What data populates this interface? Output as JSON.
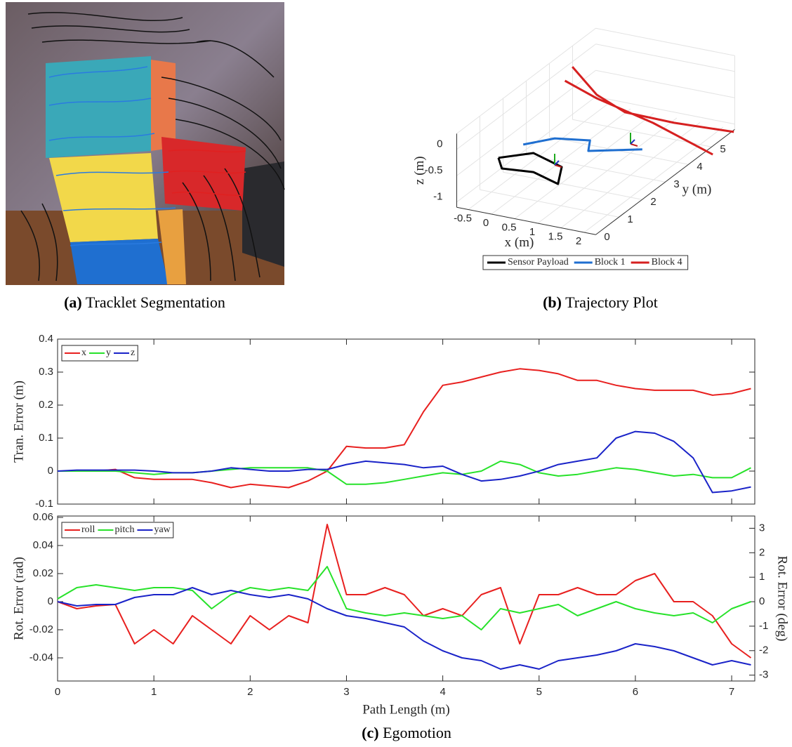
{
  "captions": [
    {
      "label": "(a)",
      "text": "Tracklet Segmentation"
    },
    {
      "label": "(b)",
      "text": "Trajectory Plot"
    },
    {
      "label": "(c)",
      "text": "Egomotion"
    }
  ],
  "chart_data": [
    {
      "type": "line3d",
      "xlabel": "x (m)",
      "ylabel": "y (m)",
      "zlabel": "z (m)",
      "xlim": [
        -0.75,
        2.25
      ],
      "ylim": [
        0,
        6
      ],
      "zlim": [
        -1.1,
        0.3
      ],
      "xticks": [
        -0.5,
        0,
        0.5,
        1,
        1.5,
        2
      ],
      "yticks": [
        0,
        1,
        2,
        3,
        4,
        5
      ],
      "zticks": [
        -1,
        -0.5,
        0
      ],
      "series": [
        {
          "name": "Sensor Payload",
          "color": "#000000",
          "x": [
            -0.32,
            0.17,
            0.97,
            1.29,
            0.6,
            -0.02,
            -0.32
          ],
          "y": [
            0.94,
            1.47,
            1.09,
            0.29,
            0.61,
            0.49,
            0.94
          ],
          "z": [
            -0.4,
            -0.4,
            -0.4,
            -0.4,
            -0.4,
            -0.4,
            -0.4
          ]
        },
        {
          "name": "Block 1",
          "color": "#1f6fd0",
          "x": [
            0.28,
            0.68,
            1.33,
            1.54,
            2.43
          ],
          "y": [
            0.81,
            1.37,
            1.59,
            1.1,
            1.65
          ],
          "z": [
            0,
            0,
            0,
            0,
            0
          ]
        },
        {
          "name": "Block 4",
          "color": "#d62020",
          "x": [
            -0.4,
            0.65,
            1.53,
            2.61,
            3.84,
            null,
            -0.21,
            0.73,
            2.25,
            3.99
          ],
          "y": [
            4.29,
            3.24,
            2.7,
            2.66,
            2.78,
            null,
            3.59,
            3.08,
            2.47,
            1.57
          ],
          "z": [
            0.2,
            0.2,
            0.2,
            0.2,
            0.2,
            null,
            0.2,
            0.2,
            0.2,
            0.2
          ]
        }
      ]
    },
    {
      "type": "line",
      "ylabel": "Tran. Error (m)",
      "x": [
        0,
        0.2,
        0.4,
        0.6,
        0.8,
        1,
        1.2,
        1.4,
        1.6,
        1.8,
        2,
        2.2,
        2.4,
        2.6,
        2.8,
        3,
        3.2,
        3.4,
        3.6,
        3.8,
        4,
        4.2,
        4.4,
        4.6,
        4.8,
        5,
        5.2,
        5.4,
        5.6,
        5.8,
        6,
        6.2,
        6.4,
        6.6,
        6.8,
        7,
        7.2
      ],
      "xlim": [
        0,
        7.24
      ],
      "xticks": [
        0,
        1,
        2,
        3,
        4,
        5,
        6,
        7
      ],
      "ylim": [
        -0.1,
        0.4
      ],
      "yticks": [
        -0.1,
        0,
        0.1,
        0.2,
        0.3,
        0.4
      ],
      "series": [
        {
          "name": "x",
          "color": "#e8201f",
          "values": [
            0,
            0,
            0,
            0.005,
            -0.02,
            -0.025,
            -0.025,
            -0.025,
            -0.035,
            -0.05,
            -0.04,
            -0.045,
            -0.05,
            -0.03,
            0,
            0.075,
            0.07,
            0.07,
            0.08,
            0.18,
            0.26,
            0.27,
            0.285,
            0.3,
            0.31,
            0.305,
            0.295,
            0.275,
            0.275,
            0.26,
            0.25,
            0.245,
            0.245,
            0.245,
            0.23,
            0.235,
            0.25
          ]
        },
        {
          "name": "y",
          "color": "#27e22a",
          "values": [
            0,
            0,
            0,
            0,
            -0.005,
            -0.01,
            -0.005,
            -0.005,
            0,
            0.005,
            0.01,
            0.01,
            0.01,
            0.01,
            0,
            -0.04,
            -0.04,
            -0.035,
            -0.025,
            -0.015,
            -0.005,
            -0.01,
            0,
            0.03,
            0.02,
            -0.005,
            -0.015,
            -0.01,
            0,
            0.01,
            0.005,
            -0.005,
            -0.015,
            -0.01,
            -0.02,
            -0.02,
            0.01
          ]
        },
        {
          "name": "z",
          "color": "#1a23c8",
          "values": [
            0,
            0.003,
            0.003,
            0.003,
            0.003,
            0,
            -0.005,
            -0.005,
            0,
            0.01,
            0.005,
            0,
            0,
            0.005,
            0.005,
            0.02,
            0.03,
            0.025,
            0.02,
            0.01,
            0.015,
            -0.01,
            -0.03,
            -0.025,
            -0.015,
            0,
            0.02,
            0.03,
            0.04,
            0.1,
            0.12,
            0.115,
            0.09,
            0.04,
            -0.065,
            -0.06,
            -0.048
          ]
        }
      ]
    },
    {
      "type": "line",
      "ylabel": "Rot. Error (rad)",
      "y2label": "Rot. Error (deg)",
      "xlabel": "Path Length (m)",
      "x": [
        0,
        0.2,
        0.4,
        0.6,
        0.8,
        1,
        1.2,
        1.4,
        1.6,
        1.8,
        2,
        2.2,
        2.4,
        2.6,
        2.8,
        3,
        3.2,
        3.4,
        3.6,
        3.8,
        4,
        4.2,
        4.4,
        4.6,
        4.8,
        5,
        5.2,
        5.4,
        5.6,
        5.8,
        6,
        6.2,
        6.4,
        6.6,
        6.8,
        7,
        7.2
      ],
      "xlim": [
        0,
        7.24
      ],
      "xticks": [
        0,
        1,
        2,
        3,
        4,
        5,
        6,
        7
      ],
      "ylim": [
        -0.0565,
        0.061
      ],
      "yticks": [
        -0.04,
        -0.02,
        0,
        0.02,
        0.04,
        0.06
      ],
      "y2lim": [
        -3.24,
        3.5
      ],
      "y2ticks": [
        -3,
        -2,
        -1,
        0,
        1,
        2,
        3
      ],
      "series": [
        {
          "name": "roll",
          "color": "#e8201f",
          "values": [
            0,
            -0.005,
            -0.003,
            -0.002,
            -0.03,
            -0.02,
            -0.03,
            -0.01,
            -0.02,
            -0.03,
            -0.01,
            -0.02,
            -0.01,
            -0.015,
            0.055,
            0.005,
            0.005,
            0.01,
            0.005,
            -0.01,
            -0.005,
            -0.01,
            0.005,
            0.01,
            -0.03,
            0.005,
            0.005,
            0.01,
            0.005,
            0.005,
            0.015,
            0.02,
            0,
            0,
            -0.01,
            -0.03,
            -0.04
          ]
        },
        {
          "name": "pitch",
          "color": "#27e22a",
          "values": [
            0.002,
            0.01,
            0.012,
            0.01,
            0.008,
            0.01,
            0.01,
            0.008,
            -0.005,
            0.005,
            0.01,
            0.008,
            0.01,
            0.008,
            0.025,
            -0.005,
            -0.008,
            -0.01,
            -0.008,
            -0.01,
            -0.012,
            -0.01,
            -0.02,
            -0.005,
            -0.008,
            -0.005,
            -0.002,
            -0.01,
            -0.005,
            0,
            -0.005,
            -0.008,
            -0.01,
            -0.008,
            -0.015,
            -0.005,
            0
          ]
        },
        {
          "name": "yaw",
          "color": "#1a23c8",
          "values": [
            0,
            -0.003,
            -0.002,
            -0.002,
            0.003,
            0.005,
            0.005,
            0.01,
            0.005,
            0.008,
            0.005,
            0.003,
            0.005,
            0.002,
            -0.005,
            -0.01,
            -0.012,
            -0.015,
            -0.018,
            -0.028,
            -0.035,
            -0.04,
            -0.042,
            -0.048,
            -0.045,
            -0.048,
            -0.042,
            -0.04,
            -0.038,
            -0.035,
            -0.03,
            -0.032,
            -0.035,
            -0.04,
            -0.045,
            -0.042,
            -0.045
          ]
        }
      ]
    }
  ]
}
